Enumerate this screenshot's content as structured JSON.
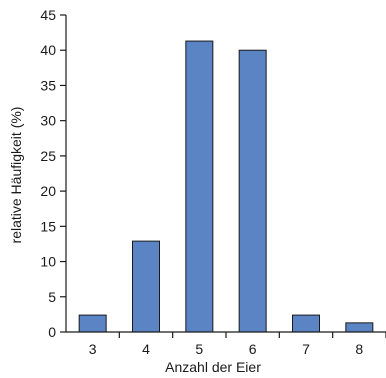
{
  "chart_data": {
    "type": "bar",
    "title": "",
    "xlabel": "Anzahl der Eier",
    "ylabel": "relative Häufigkeit (%)",
    "categories": [
      "3",
      "4",
      "5",
      "6",
      "7",
      "8"
    ],
    "values": [
      2.4,
      12.9,
      41.3,
      40.0,
      2.4,
      1.3
    ],
    "ylim": [
      0,
      45
    ],
    "yticks": [
      0,
      5,
      10,
      15,
      20,
      25,
      30,
      35,
      40,
      45
    ],
    "grid": false,
    "legend": "none",
    "colors": {
      "bar_fill": "#5b84c4",
      "bar_stroke": "#1a1a1a",
      "axis": "#1a1a1a"
    }
  }
}
